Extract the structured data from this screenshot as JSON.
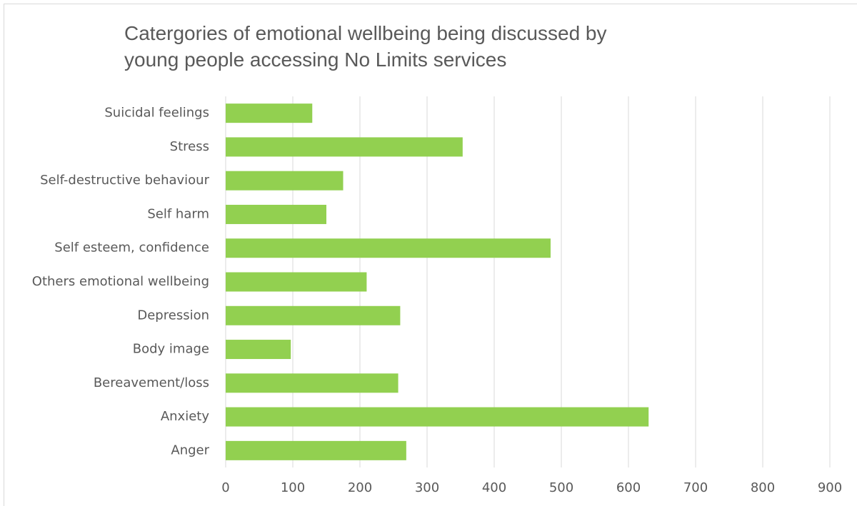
{
  "chart_data": {
    "type": "bar",
    "orientation": "horizontal",
    "title": "Catergories of emotional wellbeing being discussed by young people accessing No Limits services",
    "categories": [
      "Anger",
      "Anxiety",
      "Bereavement/loss",
      "Body image",
      "Depression",
      "Others emotional wellbeing",
      "Self esteem, confidence",
      "Self harm",
      "Self-destructive behaviour",
      "Stress",
      "Suicidal feelings"
    ],
    "values": [
      269,
      630,
      257,
      97,
      260,
      210,
      484,
      150,
      175,
      353,
      129
    ],
    "color": "#92d050",
    "xlim": [
      0,
      900
    ],
    "xticks": [
      0,
      100,
      200,
      300,
      400,
      500,
      600,
      700,
      800,
      900
    ],
    "grid": true
  }
}
